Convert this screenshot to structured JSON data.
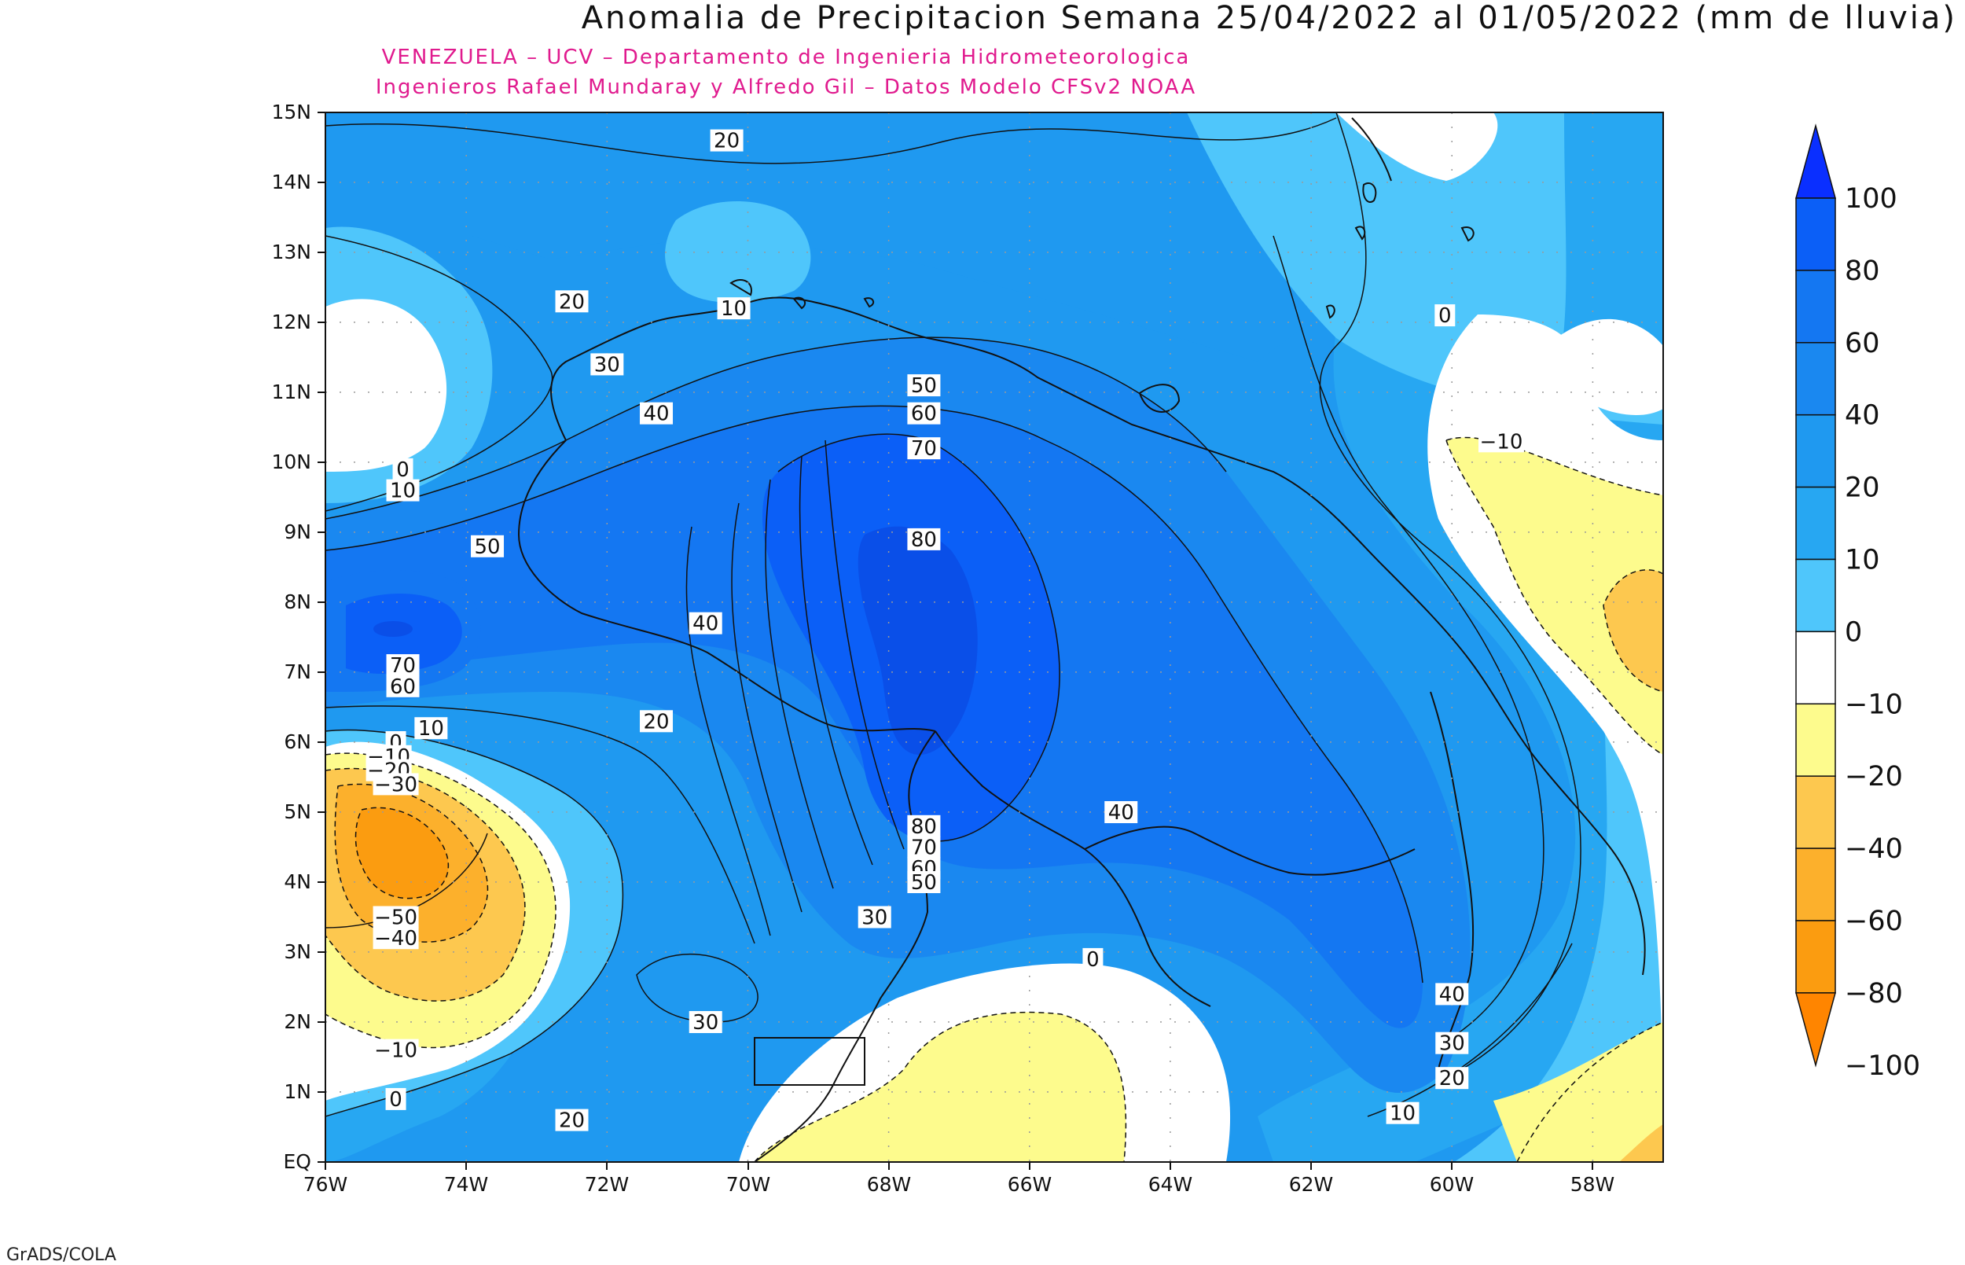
{
  "title": "Anomalia de Precipitacion Semana 25/04/2022 al 01/05/2022 (mm de lluvia)",
  "subtitle_line1": "VENEZUELA – UCV – Departamento de Ingenieria Hidrometeorologica",
  "subtitle_line2": "Ingenieros Rafael Mundaray y Alfredo Gil – Datos Modelo CFSv2 NOAA",
  "footer": "GrADS/COLA",
  "latitude_labels": [
    "15N",
    "14N",
    "13N",
    "12N",
    "11N",
    "10N",
    "9N",
    "8N",
    "7N",
    "6N",
    "5N",
    "4N",
    "3N",
    "2N",
    "1N",
    "EQ"
  ],
  "longitude_labels": [
    "76W",
    "74W",
    "72W",
    "70W",
    "68W",
    "66W",
    "64W",
    "62W",
    "60W",
    "58W"
  ],
  "colorbar": {
    "labels": [
      "100",
      "80",
      "60",
      "40",
      "20",
      "10",
      "0",
      "−10",
      "−20",
      "−40",
      "−60",
      "−80",
      "−100"
    ],
    "colors": [
      "#0a2fff",
      "#0b5ff7",
      "#1477f2",
      "#1a88f0",
      "#1f99f0",
      "#27a7f2",
      "#4fc6fb",
      "#ffffff",
      "#fdfb8d",
      "#fdc84f",
      "#fcb02c",
      "#fb9c10",
      "#ff8500"
    ]
  },
  "contour_labels": [
    {
      "text": "20",
      "lon": -70.3,
      "lat": 14.6
    },
    {
      "text": "10",
      "lon": -70.2,
      "lat": 12.2
    },
    {
      "text": "20",
      "lon": -72.5,
      "lat": 12.3
    },
    {
      "text": "30",
      "lon": -72.0,
      "lat": 11.4
    },
    {
      "text": "40",
      "lon": -71.3,
      "lat": 10.7
    },
    {
      "text": "50",
      "lon": -67.5,
      "lat": 11.1
    },
    {
      "text": "60",
      "lon": -67.5,
      "lat": 10.7
    },
    {
      "text": "70",
      "lon": -67.5,
      "lat": 10.2
    },
    {
      "text": "80",
      "lon": -67.5,
      "lat": 8.9
    },
    {
      "text": "0",
      "lon": -74.9,
      "lat": 9.9
    },
    {
      "text": "10",
      "lon": -74.9,
      "lat": 9.6
    },
    {
      "text": "50",
      "lon": -73.7,
      "lat": 8.8
    },
    {
      "text": "40",
      "lon": -70.6,
      "lat": 7.7
    },
    {
      "text": "70",
      "lon": -74.9,
      "lat": 7.1
    },
    {
      "text": "60",
      "lon": -74.9,
      "lat": 6.8
    },
    {
      "text": "20",
      "lon": -71.3,
      "lat": 6.3
    },
    {
      "text": "0",
      "lon": -75.0,
      "lat": 6.0
    },
    {
      "text": "10",
      "lon": -74.5,
      "lat": 6.2
    },
    {
      "text": "−10",
      "lon": -75.1,
      "lat": 5.8
    },
    {
      "text": "−20",
      "lon": -75.1,
      "lat": 5.6
    },
    {
      "text": "−30",
      "lon": -75.0,
      "lat": 5.4
    },
    {
      "text": "−50",
      "lon": -75.0,
      "lat": 3.5
    },
    {
      "text": "−40",
      "lon": -75.0,
      "lat": 3.2
    },
    {
      "text": "−10",
      "lon": -75.0,
      "lat": 1.6
    },
    {
      "text": "0",
      "lon": -75.0,
      "lat": 0.9
    },
    {
      "text": "80",
      "lon": -67.5,
      "lat": 4.8
    },
    {
      "text": "70",
      "lon": -67.5,
      "lat": 4.5
    },
    {
      "text": "60",
      "lon": -67.5,
      "lat": 4.2
    },
    {
      "text": "50",
      "lon": -67.5,
      "lat": 4.0
    },
    {
      "text": "30",
      "lon": -68.2,
      "lat": 3.5
    },
    {
      "text": "30",
      "lon": -70.6,
      "lat": 2.0
    },
    {
      "text": "20",
      "lon": -72.5,
      "lat": 0.6
    },
    {
      "text": "0",
      "lon": -65.1,
      "lat": 2.9
    },
    {
      "text": "40",
      "lon": -64.7,
      "lat": 5.0
    },
    {
      "text": "0",
      "lon": -60.1,
      "lat": 12.1
    },
    {
      "text": "−10",
      "lon": -59.3,
      "lat": 10.3
    },
    {
      "text": "40",
      "lon": -60.0,
      "lat": 2.4
    },
    {
      "text": "30",
      "lon": -60.0,
      "lat": 1.7
    },
    {
      "text": "20",
      "lon": -60.0,
      "lat": 1.2
    },
    {
      "text": "10",
      "lon": -60.7,
      "lat": 0.7
    }
  ]
}
